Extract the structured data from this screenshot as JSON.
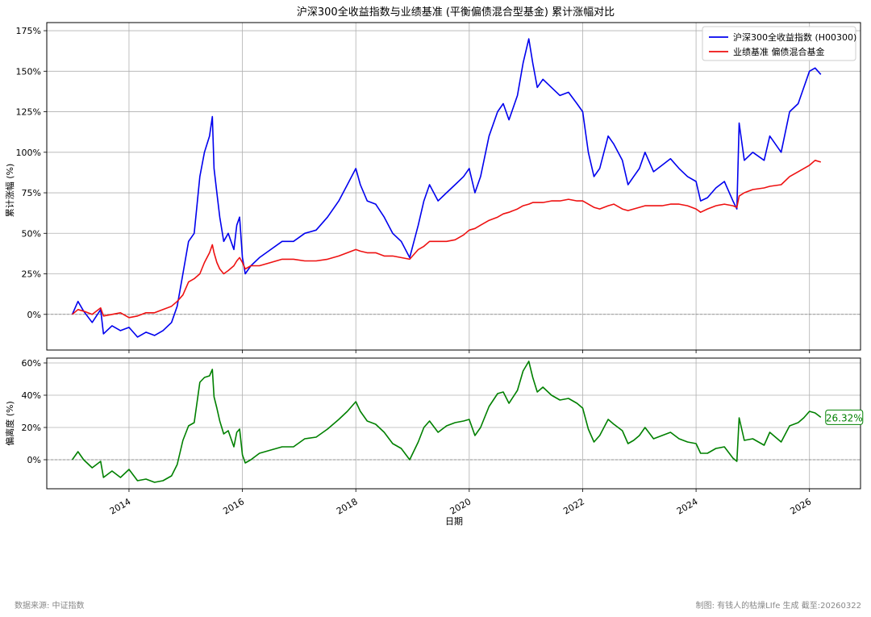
{
  "footer": {
    "source": "数据来源: 中证指数",
    "credit": "制图: 有钱人的枯燥LIfe 生成 截至:20260322"
  },
  "colors": {
    "index": "#0000ee",
    "benchmark": "#ee1111",
    "deviation": "#008000",
    "grid": "#b0b0b0",
    "zero_line": "#808080"
  },
  "chart_data": [
    {
      "type": "line",
      "title": "沪深300全收益指数与业绩基准 (平衡偏债混合型基金) 累计涨幅对比",
      "xlabel": "",
      "ylabel": "累计涨幅 (%)",
      "ylim": [
        -22,
        180
      ],
      "yticks": [
        0,
        25,
        50,
        75,
        100,
        125,
        150,
        175
      ],
      "ytick_labels": [
        "0%",
        "25%",
        "50%",
        "75%",
        "100%",
        "125%",
        "150%",
        "175%"
      ],
      "xlim": [
        2012.55,
        2026.9
      ],
      "xticks": [
        2014,
        2016,
        2018,
        2020,
        2022,
        2024,
        2026
      ],
      "grid": true,
      "legend": "top-right",
      "x": [
        2013.0,
        2013.1,
        2013.2,
        2013.35,
        2013.5,
        2013.55,
        2013.7,
        2013.85,
        2014.0,
        2014.15,
        2014.3,
        2014.45,
        2014.6,
        2014.75,
        2014.85,
        2014.95,
        2015.05,
        2015.15,
        2015.25,
        2015.33,
        2015.42,
        2015.47,
        2015.5,
        2015.55,
        2015.6,
        2015.67,
        2015.75,
        2015.85,
        2015.9,
        2015.95,
        2016.0,
        2016.05,
        2016.15,
        2016.3,
        2016.5,
        2016.7,
        2016.9,
        2017.1,
        2017.3,
        2017.5,
        2017.7,
        2017.85,
        2018.0,
        2018.08,
        2018.2,
        2018.35,
        2018.5,
        2018.65,
        2018.8,
        2018.95,
        2019.1,
        2019.2,
        2019.3,
        2019.45,
        2019.6,
        2019.75,
        2019.9,
        2020.0,
        2020.1,
        2020.2,
        2020.35,
        2020.5,
        2020.6,
        2020.7,
        2020.85,
        2020.95,
        2021.05,
        2021.12,
        2021.2,
        2021.3,
        2021.45,
        2021.6,
        2021.75,
        2021.9,
        2022.0,
        2022.1,
        2022.2,
        2022.3,
        2022.45,
        2022.55,
        2022.7,
        2022.8,
        2022.9,
        2023.0,
        2023.1,
        2023.25,
        2023.4,
        2023.55,
        2023.7,
        2023.85,
        2024.0,
        2024.08,
        2024.2,
        2024.35,
        2024.5,
        2024.65,
        2024.72,
        2024.76,
        2024.85,
        2025.0,
        2025.2,
        2025.3,
        2025.5,
        2025.65,
        2025.8,
        2025.9,
        2026.0,
        2026.1,
        2026.2
      ],
      "series": [
        {
          "name": "沪深300全收益指数 (H00300)",
          "values": [
            0,
            8,
            2,
            -5,
            3,
            -12,
            -7,
            -10,
            -8,
            -14,
            -11,
            -13,
            -10,
            -5,
            5,
            25,
            45,
            50,
            85,
            100,
            110,
            122,
            90,
            75,
            60,
            45,
            50,
            40,
            55,
            60,
            35,
            25,
            30,
            35,
            40,
            45,
            45,
            50,
            52,
            60,
            70,
            80,
            90,
            80,
            70,
            68,
            60,
            50,
            45,
            35,
            55,
            70,
            80,
            70,
            75,
            80,
            85,
            90,
            75,
            85,
            110,
            125,
            130,
            120,
            135,
            155,
            170,
            155,
            140,
            145,
            140,
            135,
            137,
            130,
            125,
            100,
            85,
            90,
            110,
            105,
            95,
            80,
            85,
            90,
            100,
            88,
            92,
            96,
            90,
            85,
            82,
            70,
            72,
            78,
            82,
            70,
            65,
            118,
            95,
            100,
            95,
            110,
            100,
            125,
            130,
            140,
            150,
            152,
            148
          ]
        },
        {
          "name": "业绩基准 偏债混合基金",
          "values": [
            0,
            3,
            2,
            0,
            4,
            -1,
            0,
            1,
            -2,
            -1,
            1,
            1,
            3,
            5,
            8,
            12,
            20,
            22,
            25,
            32,
            38,
            43,
            38,
            32,
            28,
            25,
            27,
            30,
            33,
            35,
            32,
            28,
            30,
            30,
            32,
            34,
            34,
            33,
            33,
            34,
            36,
            38,
            40,
            39,
            38,
            38,
            36,
            36,
            35,
            34,
            40,
            42,
            45,
            45,
            45,
            46,
            49,
            52,
            53,
            55,
            58,
            60,
            62,
            63,
            65,
            67,
            68,
            69,
            69,
            69,
            70,
            70,
            71,
            70,
            70,
            68,
            66,
            65,
            67,
            68,
            65,
            64,
            65,
            66,
            67,
            67,
            67,
            68,
            68,
            67,
            65,
            63,
            65,
            67,
            68,
            67,
            66,
            73,
            75,
            77,
            78,
            79,
            80,
            85,
            88,
            90,
            92,
            95,
            94
          ]
        }
      ]
    },
    {
      "type": "line",
      "title": "",
      "xlabel": "日期",
      "ylabel": "偏离度 (%)",
      "ylim": [
        -18,
        63
      ],
      "yticks": [
        0,
        20,
        40,
        60
      ],
      "ytick_labels": [
        "0%",
        "20%",
        "40%",
        "60%"
      ],
      "xlim": [
        2012.55,
        2026.9
      ],
      "xticks": [
        2014,
        2016,
        2018,
        2020,
        2022,
        2024,
        2026
      ],
      "grid": true,
      "annotation": "26.32%",
      "x": [
        2013.0,
        2013.1,
        2013.2,
        2013.35,
        2013.5,
        2013.55,
        2013.7,
        2013.85,
        2014.0,
        2014.15,
        2014.3,
        2014.45,
        2014.6,
        2014.75,
        2014.85,
        2014.95,
        2015.05,
        2015.15,
        2015.25,
        2015.33,
        2015.42,
        2015.47,
        2015.5,
        2015.55,
        2015.6,
        2015.67,
        2015.75,
        2015.85,
        2015.9,
        2015.95,
        2016.0,
        2016.05,
        2016.15,
        2016.3,
        2016.5,
        2016.7,
        2016.9,
        2017.1,
        2017.3,
        2017.5,
        2017.7,
        2017.85,
        2018.0,
        2018.08,
        2018.2,
        2018.35,
        2018.5,
        2018.65,
        2018.8,
        2018.95,
        2019.1,
        2019.2,
        2019.3,
        2019.45,
        2019.6,
        2019.75,
        2019.9,
        2020.0,
        2020.1,
        2020.2,
        2020.35,
        2020.5,
        2020.6,
        2020.7,
        2020.85,
        2020.95,
        2021.05,
        2021.12,
        2021.2,
        2021.3,
        2021.45,
        2021.6,
        2021.75,
        2021.9,
        2022.0,
        2022.1,
        2022.2,
        2022.3,
        2022.45,
        2022.55,
        2022.7,
        2022.8,
        2022.9,
        2023.0,
        2023.1,
        2023.25,
        2023.4,
        2023.55,
        2023.7,
        2023.85,
        2024.0,
        2024.08,
        2024.2,
        2024.35,
        2024.5,
        2024.65,
        2024.72,
        2024.76,
        2024.85,
        2025.0,
        2025.2,
        2025.3,
        2025.5,
        2025.65,
        2025.8,
        2025.9,
        2026.0,
        2026.1,
        2026.2
      ],
      "series": [
        {
          "name": "",
          "values": [
            0,
            5,
            0,
            -5,
            -1,
            -11,
            -7,
            -11,
            -6,
            -13,
            -12,
            -14,
            -13,
            -10,
            -3,
            12,
            21,
            23,
            48,
            51,
            52,
            56,
            39,
            32,
            24,
            16,
            18,
            8,
            17,
            19,
            3,
            -2,
            0,
            4,
            6,
            8,
            8,
            13,
            14,
            19,
            25,
            30,
            36,
            30,
            24,
            22,
            17,
            10,
            7,
            0,
            11,
            20,
            24,
            17,
            21,
            23,
            24,
            25,
            15,
            20,
            33,
            41,
            42,
            35,
            43,
            55,
            61,
            51,
            42,
            45,
            40,
            37,
            38,
            35,
            32,
            19,
            11,
            15,
            25,
            22,
            18,
            10,
            12,
            15,
            20,
            13,
            15,
            17,
            13,
            11,
            10,
            4,
            4,
            7,
            8,
            1,
            -1,
            26,
            12,
            13,
            9,
            17,
            11,
            21,
            23,
            26,
            30,
            29,
            26.32
          ]
        }
      ]
    }
  ]
}
